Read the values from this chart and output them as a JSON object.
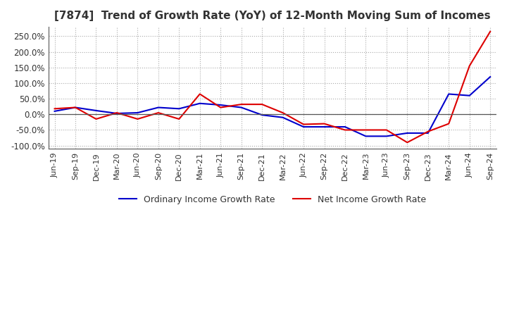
{
  "title": "[7874]  Trend of Growth Rate (YoY) of 12-Month Moving Sum of Incomes",
  "title_fontsize": 11,
  "ylim": [
    -110,
    280
  ],
  "yticks": [
    -100,
    -50,
    0,
    50,
    100,
    150,
    200,
    250
  ],
  "background_color": "#ffffff",
  "grid_color": "#aaaaaa",
  "ordinary_color": "#0000cc",
  "net_color": "#dd0000",
  "dates": [
    "Jun-19",
    "Sep-19",
    "Dec-19",
    "Mar-20",
    "Jun-20",
    "Sep-20",
    "Dec-20",
    "Mar-21",
    "Jun-21",
    "Sep-21",
    "Dec-21",
    "Mar-22",
    "Jun-22",
    "Sep-22",
    "Dec-22",
    "Mar-23",
    "Jun-23",
    "Sep-23",
    "Dec-23",
    "Mar-24",
    "Jun-24",
    "Sep-24"
  ],
  "ordinary_income_growth": [
    10,
    22,
    12,
    3,
    5,
    22,
    18,
    35,
    30,
    22,
    -2,
    -10,
    -40,
    -40,
    -40,
    -70,
    -70,
    -60,
    -60,
    65,
    60,
    120
  ],
  "net_income_growth": [
    18,
    22,
    -15,
    5,
    -15,
    5,
    -15,
    65,
    22,
    32,
    32,
    5,
    -32,
    -30,
    -50,
    -50,
    -50,
    -90,
    -55,
    -30,
    155,
    265
  ],
  "legend_labels": [
    "Ordinary Income Growth Rate",
    "Net Income Growth Rate"
  ]
}
